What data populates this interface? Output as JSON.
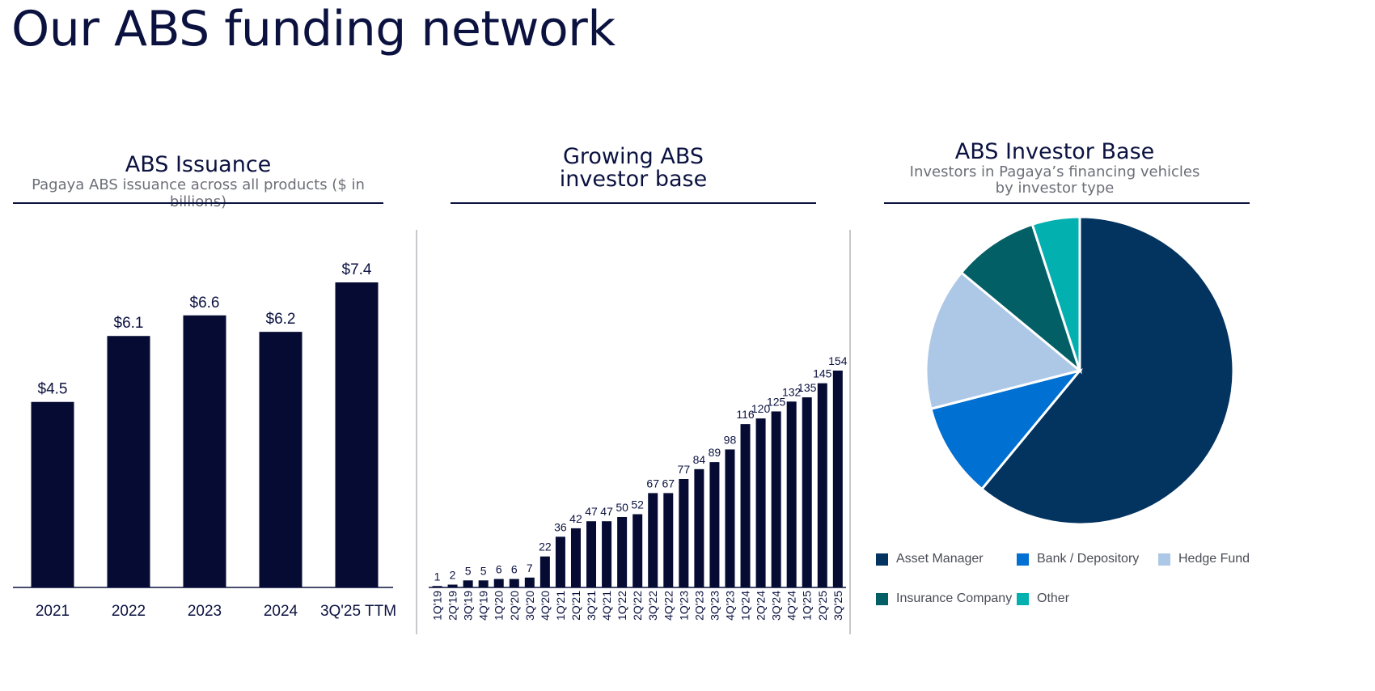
{
  "page": {
    "title": "Our ABS funding network"
  },
  "panels": {
    "issuance": {
      "title": "ABS Issuance",
      "subtitle": "Pagaya ABS issuance across all products ($ in billions)"
    },
    "investors": {
      "title_line1": "Growing ABS",
      "title_line2": "investor base"
    },
    "base": {
      "title": "ABS Investor Base",
      "subtitle_line1": "Investors in Pagaya’s financing vehicles",
      "subtitle_line2": "by investor type"
    }
  },
  "colors": {
    "bar_dark": "#050b33",
    "asset_manager": "#03335f",
    "bank": "#0070d2",
    "hedge_fund": "#adc8e6",
    "insurance": "#035f66",
    "other": "#02b0b0"
  },
  "chart_data": [
    {
      "type": "bar",
      "title": "ABS Issuance",
      "categories": [
        "2021",
        "2022",
        "2023",
        "2024",
        "3Q'25 TTM"
      ],
      "values": [
        4.5,
        6.1,
        6.6,
        6.2,
        7.4
      ],
      "labels": [
        "$4.5",
        "$6.1",
        "$6.6",
        "$6.2",
        "$7.4"
      ],
      "ylim": [
        0,
        8.0
      ],
      "xlabel": "",
      "ylabel": ""
    },
    {
      "type": "bar",
      "title": "Growing ABS investor base",
      "categories": [
        "1Q'19",
        "2Q'19",
        "3Q'19",
        "4Q'19",
        "1Q'20",
        "2Q'20",
        "3Q'20",
        "4Q'20",
        "1Q'21",
        "2Q'21",
        "3Q'21",
        "4Q'21",
        "1Q'22",
        "2Q'22",
        "3Q'22",
        "4Q'22",
        "1Q'23",
        "2Q'23",
        "3Q'23",
        "4Q'23",
        "1Q'24",
        "2Q'24",
        "3Q'24",
        "4Q'24",
        "1Q'25",
        "2Q'25",
        "3Q'25"
      ],
      "values": [
        1,
        2,
        5,
        5,
        6,
        6,
        7,
        22,
        36,
        42,
        47,
        47,
        50,
        52,
        67,
        67,
        77,
        84,
        89,
        98,
        116,
        120,
        125,
        132,
        135,
        145,
        154
      ],
      "ylim": [
        0,
        175
      ],
      "xlabel": "",
      "ylabel": ""
    },
    {
      "type": "pie",
      "title": "ABS Investor Base",
      "subtitle": "Investors in Pagaya’s financing vehicles by investor type",
      "categories": [
        "Asset Manager",
        "Bank / Depository",
        "Hedge Fund",
        "Insurance Company",
        "Other"
      ],
      "values": [
        61,
        10,
        15,
        9,
        5
      ],
      "legend": [
        "Asset Manager",
        "Bank / Depository",
        "Hedge Fund",
        "Insurance Company",
        "Other"
      ]
    }
  ]
}
